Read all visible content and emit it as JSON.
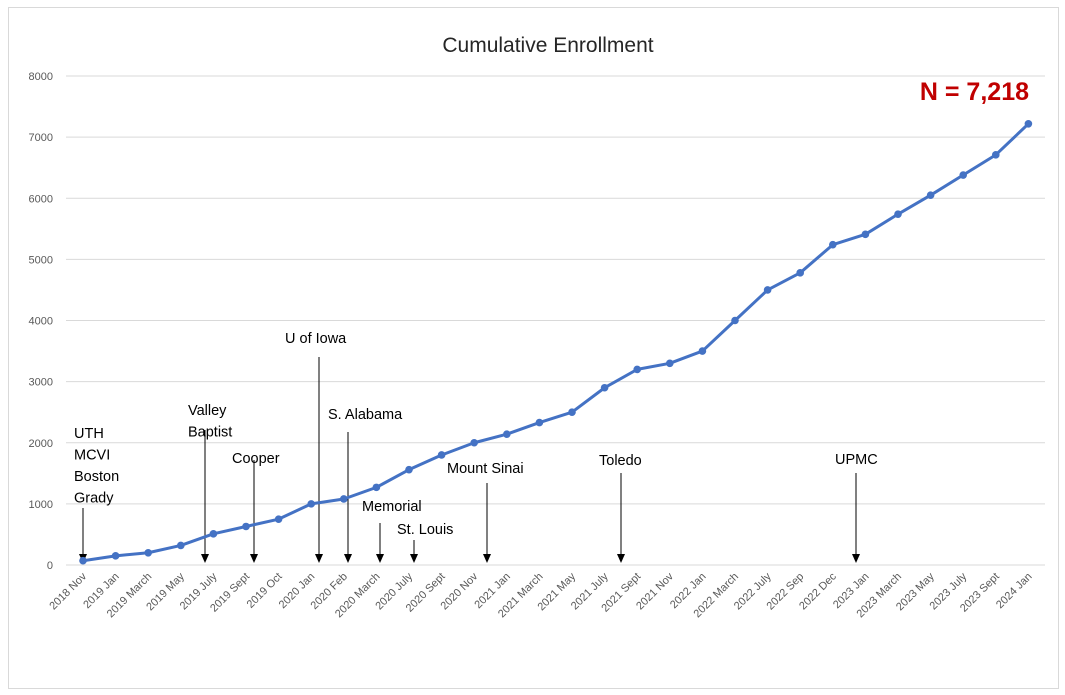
{
  "chart_data": {
    "type": "line",
    "title": "Cumulative Enrollment",
    "xlabel": "",
    "ylabel": "",
    "ylim": [
      0,
      8000
    ],
    "yticks": [
      0,
      1000,
      2000,
      3000,
      4000,
      5000,
      6000,
      7000,
      8000
    ],
    "grid": true,
    "legend": "none",
    "categories": [
      "2018 Nov",
      "2019 Jan",
      "2019 March",
      "2019 May",
      "2019 July",
      "2019 Sept",
      "2019 Oct",
      "2020 Jan",
      "2020 Feb",
      "2020 March",
      "2020 July",
      "2020 Sept",
      "2020 Nov",
      "2021 Jan",
      "2021 March",
      "2021 May",
      "2021 July",
      "2021 Sept",
      "2021 Nov",
      "2022 Jan",
      "2022 March",
      "2022 July",
      "2022 Sep",
      "2022 Dec",
      "2023 Jan",
      "2023 March",
      "2023 May",
      "2023 July",
      "2023 Sept",
      "2024 Jan"
    ],
    "series": [
      {
        "values": [
          70,
          150,
          200,
          320,
          510,
          630,
          750,
          1000,
          1080,
          1270,
          1560,
          1800,
          2000,
          2140,
          2330,
          2500,
          2900,
          3200,
          3300,
          3500,
          4000,
          4500,
          4780,
          5240,
          5410,
          5740,
          6050,
          6380,
          6710,
          7218
        ]
      }
    ],
    "line_color": "#4472C4",
    "annotations": [
      {
        "lines": [
          "UTH",
          "MCVI",
          "Boston",
          "Grady"
        ],
        "category": "2018 Nov"
      },
      {
        "lines": [
          "Valley",
          "Baptist"
        ],
        "category": "2019 July"
      },
      {
        "lines": [
          "Cooper"
        ],
        "category": "2019 Sept"
      },
      {
        "lines": [
          "U of Iowa"
        ],
        "category": "2020 Jan"
      },
      {
        "lines": [
          "S. Alabama"
        ],
        "category": "2020 Feb"
      },
      {
        "lines": [
          "Memorial"
        ],
        "category": "2020 March"
      },
      {
        "lines": [
          "St. Louis"
        ],
        "category": "2020 July"
      },
      {
        "lines": [
          "Mount Sinai"
        ],
        "category": "2020 Nov"
      },
      {
        "lines": [
          "Toledo"
        ],
        "category": "2021 Sept"
      },
      {
        "lines": [
          "UPMC"
        ],
        "category": "2023 Jan"
      }
    ],
    "callout": {
      "text": "N = 7,218",
      "color": "#C00000"
    }
  }
}
